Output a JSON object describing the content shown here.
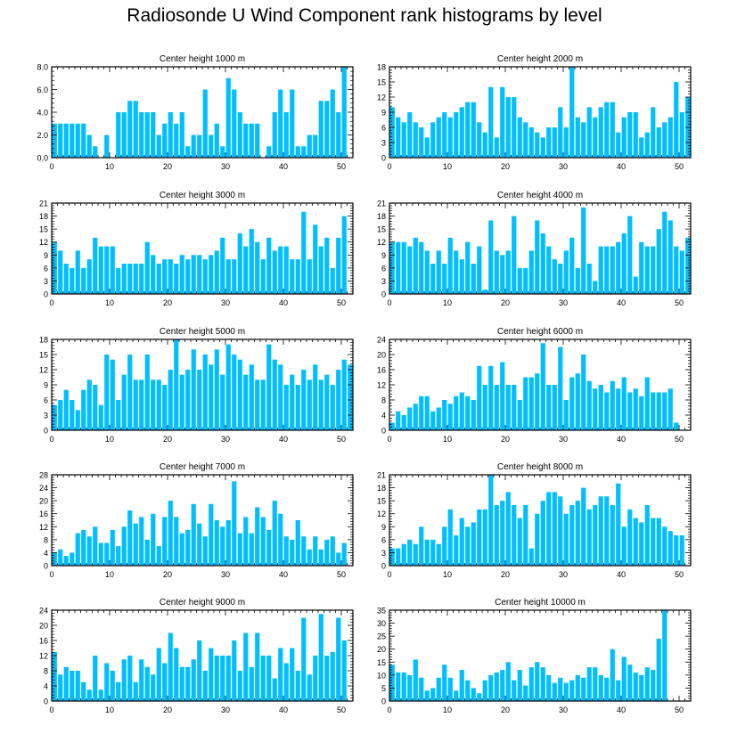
{
  "title": "Radiosonde U Wind Component rank histograms by level",
  "colors": {
    "bar": "#00BFFF",
    "axis": "#000000",
    "background": "#ffffff"
  },
  "chart_data": [
    {
      "type": "bar",
      "title": "Center height 1000 m",
      "xlabel": "",
      "ylabel": "",
      "x_start": 0,
      "xlim": [
        0,
        52
      ],
      "xticks": [
        0,
        10,
        20,
        30,
        40,
        50
      ],
      "ylim": [
        0,
        8
      ],
      "yticks": [
        "0.0",
        "2.0",
        "4.0",
        "6.0",
        "8.0"
      ],
      "values": [
        3,
        3,
        3,
        3,
        3,
        3,
        2,
        1,
        0,
        2,
        0,
        4,
        4,
        5,
        5,
        4,
        4,
        4,
        2,
        3,
        4,
        3,
        4,
        1,
        2,
        2,
        6,
        2,
        3,
        1,
        7,
        6,
        4,
        3,
        3,
        3,
        0,
        1,
        4,
        6,
        4,
        6,
        1,
        1,
        2,
        2,
        5,
        5,
        6,
        4,
        8
      ]
    },
    {
      "type": "bar",
      "title": "Center height 2000 m",
      "xlabel": "",
      "ylabel": "",
      "x_start": 0,
      "xlim": [
        0,
        52
      ],
      "xticks": [
        0,
        10,
        20,
        30,
        40,
        50
      ],
      "ylim": [
        0,
        18
      ],
      "yticks": [
        "0",
        "3",
        "6",
        "9",
        "12",
        "15",
        "18"
      ],
      "values": [
        10,
        8,
        7,
        9,
        7,
        6,
        4,
        7,
        8,
        9,
        8,
        9,
        10,
        11,
        11,
        7,
        5,
        14,
        4,
        14,
        12,
        12,
        8,
        7,
        6,
        5,
        4,
        6,
        6,
        10,
        6,
        18,
        8,
        7,
        10,
        8,
        10,
        11,
        11,
        5,
        8,
        9,
        9,
        4,
        5,
        10,
        6,
        7,
        8,
        15,
        9,
        12
      ]
    },
    {
      "type": "bar",
      "title": "Center height 3000 m",
      "xlabel": "",
      "ylabel": "",
      "x_start": 0,
      "xlim": [
        0,
        52
      ],
      "xticks": [
        0,
        10,
        20,
        30,
        40,
        50
      ],
      "ylim": [
        0,
        21
      ],
      "yticks": [
        "0",
        "3",
        "6",
        "9",
        "12",
        "15",
        "18",
        "21"
      ],
      "values": [
        12,
        10,
        7,
        6,
        10,
        6,
        8,
        13,
        11,
        11,
        11,
        6,
        7,
        7,
        7,
        7,
        12,
        9,
        7,
        8,
        8,
        7,
        9,
        8,
        9,
        9,
        8,
        9,
        10,
        13,
        8,
        8,
        14,
        11,
        15,
        12,
        8,
        13,
        10,
        11,
        11,
        8,
        8,
        19,
        8,
        16,
        11,
        13,
        6,
        13,
        18
      ]
    },
    {
      "type": "bar",
      "title": "Center height 4000 m",
      "xlabel": "",
      "ylabel": "",
      "x_start": 0,
      "xlim": [
        0,
        52
      ],
      "xticks": [
        0,
        10,
        20,
        30,
        40,
        50
      ],
      "ylim": [
        0,
        21
      ],
      "yticks": [
        "0",
        "3",
        "6",
        "9",
        "12",
        "15",
        "18",
        "21"
      ],
      "values": [
        12,
        12,
        12,
        11,
        13,
        12,
        10,
        7,
        10,
        7,
        13,
        10,
        8,
        12,
        7,
        11,
        1,
        17,
        10,
        9,
        10,
        18,
        6,
        6,
        10,
        17,
        14,
        11,
        8,
        7,
        10,
        13,
        6,
        20,
        7,
        3,
        11,
        11,
        11,
        12,
        14,
        18,
        4,
        12,
        11,
        11,
        15,
        19,
        17,
        11,
        10,
        13
      ]
    },
    {
      "type": "bar",
      "title": "Center height 5000 m",
      "xlabel": "",
      "ylabel": "",
      "x_start": 0,
      "xlim": [
        0,
        52
      ],
      "xticks": [
        0,
        10,
        20,
        30,
        40,
        50
      ],
      "ylim": [
        0,
        18
      ],
      "yticks": [
        "0",
        "3",
        "6",
        "9",
        "12",
        "15",
        "18"
      ],
      "values": [
        5,
        6,
        8,
        6,
        4,
        8,
        10,
        9,
        5,
        15,
        14,
        6,
        11,
        15,
        10,
        10,
        15,
        10,
        10,
        9,
        12,
        18,
        11,
        12,
        16,
        12,
        15,
        13,
        16,
        11,
        17,
        15,
        14,
        11,
        13,
        10,
        10,
        17,
        14,
        13,
        9,
        11,
        9,
        12,
        10,
        13,
        10,
        11,
        9,
        12,
        14,
        13
      ]
    },
    {
      "type": "bar",
      "title": "Center height 6000 m",
      "xlabel": "",
      "ylabel": "",
      "x_start": 0,
      "xlim": [
        0,
        52
      ],
      "xticks": [
        0,
        10,
        20,
        30,
        40,
        50
      ],
      "ylim": [
        0,
        24
      ],
      "yticks": [
        "0",
        "4",
        "8",
        "12",
        "16",
        "20",
        "24"
      ],
      "values": [
        2,
        5,
        4,
        6,
        7,
        9,
        9,
        5,
        6,
        8,
        7,
        9,
        10,
        9,
        8,
        17,
        12,
        17,
        12,
        18,
        12,
        12,
        8,
        14,
        14,
        15,
        23,
        12,
        12,
        22,
        8,
        14,
        15,
        20,
        13,
        11,
        12,
        10,
        13,
        11,
        14,
        10,
        11,
        9,
        14,
        10,
        10,
        10,
        11,
        2
      ]
    },
    {
      "type": "bar",
      "title": "Center height 7000 m",
      "xlabel": "",
      "ylabel": "",
      "x_start": 0,
      "xlim": [
        0,
        52
      ],
      "xticks": [
        0,
        10,
        20,
        30,
        40,
        50
      ],
      "ylim": [
        0,
        28
      ],
      "yticks": [
        "0",
        "4",
        "8",
        "12",
        "16",
        "20",
        "24",
        "28"
      ],
      "values": [
        4,
        5,
        3,
        4,
        10,
        11,
        9,
        12,
        7,
        7,
        11,
        6,
        12,
        17,
        13,
        15,
        8,
        16,
        6,
        15,
        20,
        15,
        10,
        11,
        19,
        13,
        9,
        19,
        14,
        12,
        14,
        26,
        10,
        15,
        10,
        18,
        15,
        11,
        20,
        16,
        9,
        8,
        14,
        9,
        5,
        9,
        5,
        8,
        9,
        4,
        7
      ]
    },
    {
      "type": "bar",
      "title": "Center height 8000 m",
      "xlabel": "",
      "ylabel": "",
      "x_start": 0,
      "xlim": [
        0,
        52
      ],
      "xticks": [
        0,
        10,
        20,
        30,
        40,
        50
      ],
      "ylim": [
        0,
        21
      ],
      "yticks": [
        "0",
        "3",
        "6",
        "9",
        "12",
        "15",
        "18",
        "21"
      ],
      "values": [
        4,
        4,
        5,
        6,
        5,
        9,
        6,
        6,
        5,
        9,
        13,
        7,
        11,
        9,
        10,
        13,
        13,
        21,
        14,
        15,
        17,
        14,
        11,
        14,
        4,
        12,
        15,
        17,
        17,
        16,
        12,
        14,
        15,
        18,
        13,
        14,
        16,
        16,
        14,
        19,
        9,
        13,
        11,
        10,
        14,
        11,
        11,
        9,
        8,
        7,
        7
      ]
    },
    {
      "type": "bar",
      "title": "Center height 9000 m",
      "xlabel": "",
      "ylabel": "",
      "x_start": 0,
      "xlim": [
        0,
        52
      ],
      "xticks": [
        0,
        10,
        20,
        30,
        40,
        50
      ],
      "ylim": [
        0,
        24
      ],
      "yticks": [
        "0",
        "4",
        "8",
        "12",
        "16",
        "20",
        "24"
      ],
      "values": [
        13,
        7,
        9,
        8,
        8,
        5,
        3,
        12,
        3,
        10,
        8,
        5,
        11,
        12,
        5,
        11,
        9,
        7,
        14,
        10,
        18,
        14,
        9,
        9,
        11,
        16,
        8,
        14,
        12,
        12,
        12,
        16,
        8,
        18,
        9,
        18,
        12,
        12,
        6,
        14,
        10,
        14,
        8,
        22,
        7,
        12,
        23,
        12,
        13,
        22,
        16
      ]
    },
    {
      "type": "bar",
      "title": "Center height 10000 m",
      "xlabel": "",
      "ylabel": "",
      "x_start": 0,
      "xlim": [
        0,
        52
      ],
      "xticks": [
        0,
        10,
        20,
        30,
        40,
        50
      ],
      "ylim": [
        0,
        35
      ],
      "yticks": [
        "0",
        "5",
        "10",
        "15",
        "20",
        "25",
        "30",
        "35"
      ],
      "values": [
        14,
        11,
        11,
        10,
        16,
        9,
        4,
        5,
        9,
        14,
        9,
        4,
        12,
        8,
        5,
        3,
        8,
        10,
        11,
        12,
        15,
        8,
        12,
        6,
        13,
        15,
        13,
        10,
        7,
        9,
        7,
        8,
        10,
        9,
        13,
        13,
        10,
        9,
        20,
        8,
        17,
        14,
        11,
        10,
        13,
        12,
        24,
        35
      ]
    }
  ]
}
